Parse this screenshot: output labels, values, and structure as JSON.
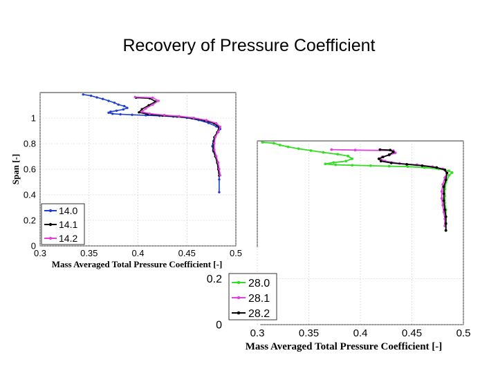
{
  "title": "Recovery of Pressure Coefficient",
  "chart_data": [
    {
      "type": "line",
      "xlabel": "Mass Averaged Total Pressure Coefficient [-]",
      "ylabel": "Span [-]",
      "xlim": [
        0.3,
        0.5
      ],
      "ylim": [
        0,
        1.2
      ],
      "xticks": [
        "0.3",
        "0.35",
        "0.4",
        "0.45",
        "0.5"
      ],
      "yticks": [
        "0",
        "0.2",
        "0.4",
        "0.6",
        "0.8",
        "1"
      ],
      "grid": true,
      "legend": "bottom-left",
      "series": [
        {
          "name": "14.0",
          "color": "#1f3fd0",
          "x": [
            0.344,
            0.352,
            0.358,
            0.364,
            0.37,
            0.376,
            0.38,
            0.386,
            0.389,
            0.385,
            0.378,
            0.372,
            0.37,
            0.374,
            0.382,
            0.394,
            0.408,
            0.422,
            0.436,
            0.45,
            0.462,
            0.472,
            0.48,
            0.484,
            0.482,
            0.479,
            0.477,
            0.476,
            0.477,
            0.479,
            0.481,
            0.482,
            0.483,
            0.483,
            0.483
          ],
          "y": [
            1.185,
            1.175,
            1.162,
            1.15,
            1.135,
            1.12,
            1.106,
            1.094,
            1.08,
            1.068,
            1.058,
            1.05,
            1.042,
            1.034,
            1.03,
            1.026,
            1.022,
            1.018,
            1.012,
            1.002,
            0.985,
            0.962,
            0.935,
            0.915,
            0.89,
            0.86,
            0.82,
            0.78,
            0.74,
            0.7,
            0.66,
            0.62,
            0.57,
            0.52,
            0.42
          ]
        },
        {
          "name": "14.1",
          "color": "#000000",
          "x": [
            0.398,
            0.412,
            0.418,
            0.411,
            0.404,
            0.401,
            0.41,
            0.425,
            0.44,
            0.455,
            0.468,
            0.478,
            0.483,
            0.481,
            0.478,
            0.477,
            0.477,
            0.479,
            0.481,
            0.482,
            0.483
          ],
          "y": [
            1.16,
            1.155,
            1.13,
            1.1,
            1.07,
            1.045,
            1.03,
            1.02,
            1.012,
            1.0,
            0.982,
            0.958,
            0.93,
            0.89,
            0.85,
            0.8,
            0.75,
            0.7,
            0.65,
            0.6,
            0.55
          ]
        },
        {
          "name": "14.2",
          "color": "#e040e0",
          "x": [
            0.397,
            0.415,
            0.421,
            0.415,
            0.408,
            0.404,
            0.412,
            0.427,
            0.442,
            0.457,
            0.47,
            0.48,
            0.484,
            0.482,
            0.479,
            0.478,
            0.478,
            0.48,
            0.482,
            0.483,
            0.484
          ],
          "y": [
            1.165,
            1.16,
            1.135,
            1.105,
            1.075,
            1.05,
            1.035,
            1.024,
            1.015,
            1.002,
            0.984,
            0.96,
            0.932,
            0.892,
            0.852,
            0.802,
            0.752,
            0.702,
            0.652,
            0.602,
            0.552
          ]
        }
      ]
    },
    {
      "type": "line",
      "xlabel": "Mass Averaged Total Pressure Coefficient [-]",
      "ylabel": "",
      "xlim": [
        0.3,
        0.5
      ],
      "ylim": [
        0,
        0.8
      ],
      "xticks": [
        "0.3",
        "0.35",
        "0.4",
        "0.45",
        "0.5"
      ],
      "yticks": [
        "0",
        "0.2"
      ],
      "grid": true,
      "legend": "bottom-left",
      "series": [
        {
          "name": "28.0",
          "color": "#33dd22",
          "x": [
            0.305,
            0.316,
            0.322,
            0.33,
            0.34,
            0.352,
            0.364,
            0.378,
            0.388,
            0.392,
            0.386,
            0.374,
            0.366,
            0.376,
            0.392,
            0.41,
            0.428,
            0.446,
            0.462,
            0.476,
            0.486,
            0.489,
            0.486,
            0.483,
            0.482,
            0.482,
            0.482,
            0.483,
            0.483,
            0.483,
            0.483
          ],
          "y": [
            0.794,
            0.79,
            0.782,
            0.774,
            0.766,
            0.758,
            0.75,
            0.742,
            0.734,
            0.722,
            0.712,
            0.706,
            0.7,
            0.696,
            0.694,
            0.692,
            0.69,
            0.688,
            0.684,
            0.678,
            0.67,
            0.662,
            0.65,
            0.62,
            0.59,
            0.56,
            0.53,
            0.5,
            0.47,
            0.44,
            0.41
          ]
        },
        {
          "name": "28.1",
          "color": "#e040e0",
          "x": [
            0.372,
            0.395,
            0.432,
            0.434,
            0.428,
            0.421,
            0.419,
            0.424,
            0.438,
            0.455,
            0.47,
            0.48,
            0.484,
            0.482,
            0.48,
            0.479,
            0.479,
            0.48,
            0.481,
            0.482,
            0.482
          ],
          "y": [
            0.762,
            0.76,
            0.758,
            0.748,
            0.738,
            0.73,
            0.722,
            0.712,
            0.702,
            0.696,
            0.688,
            0.678,
            0.662,
            0.64,
            0.61,
            0.58,
            0.55,
            0.52,
            0.49,
            0.46,
            0.43
          ]
        },
        {
          "name": "28.2",
          "color": "#000000",
          "x": [
            0.419,
            0.429,
            0.432,
            0.428,
            0.422,
            0.418,
            0.42,
            0.43,
            0.445,
            0.46,
            0.474,
            0.482,
            0.484,
            0.483,
            0.481,
            0.481,
            0.481,
            0.482,
            0.483,
            0.483,
            0.483
          ],
          "y": [
            0.762,
            0.76,
            0.752,
            0.74,
            0.73,
            0.722,
            0.712,
            0.704,
            0.698,
            0.692,
            0.684,
            0.674,
            0.66,
            0.63,
            0.6,
            0.57,
            0.54,
            0.5,
            0.47,
            0.44,
            0.41
          ]
        }
      ]
    }
  ]
}
